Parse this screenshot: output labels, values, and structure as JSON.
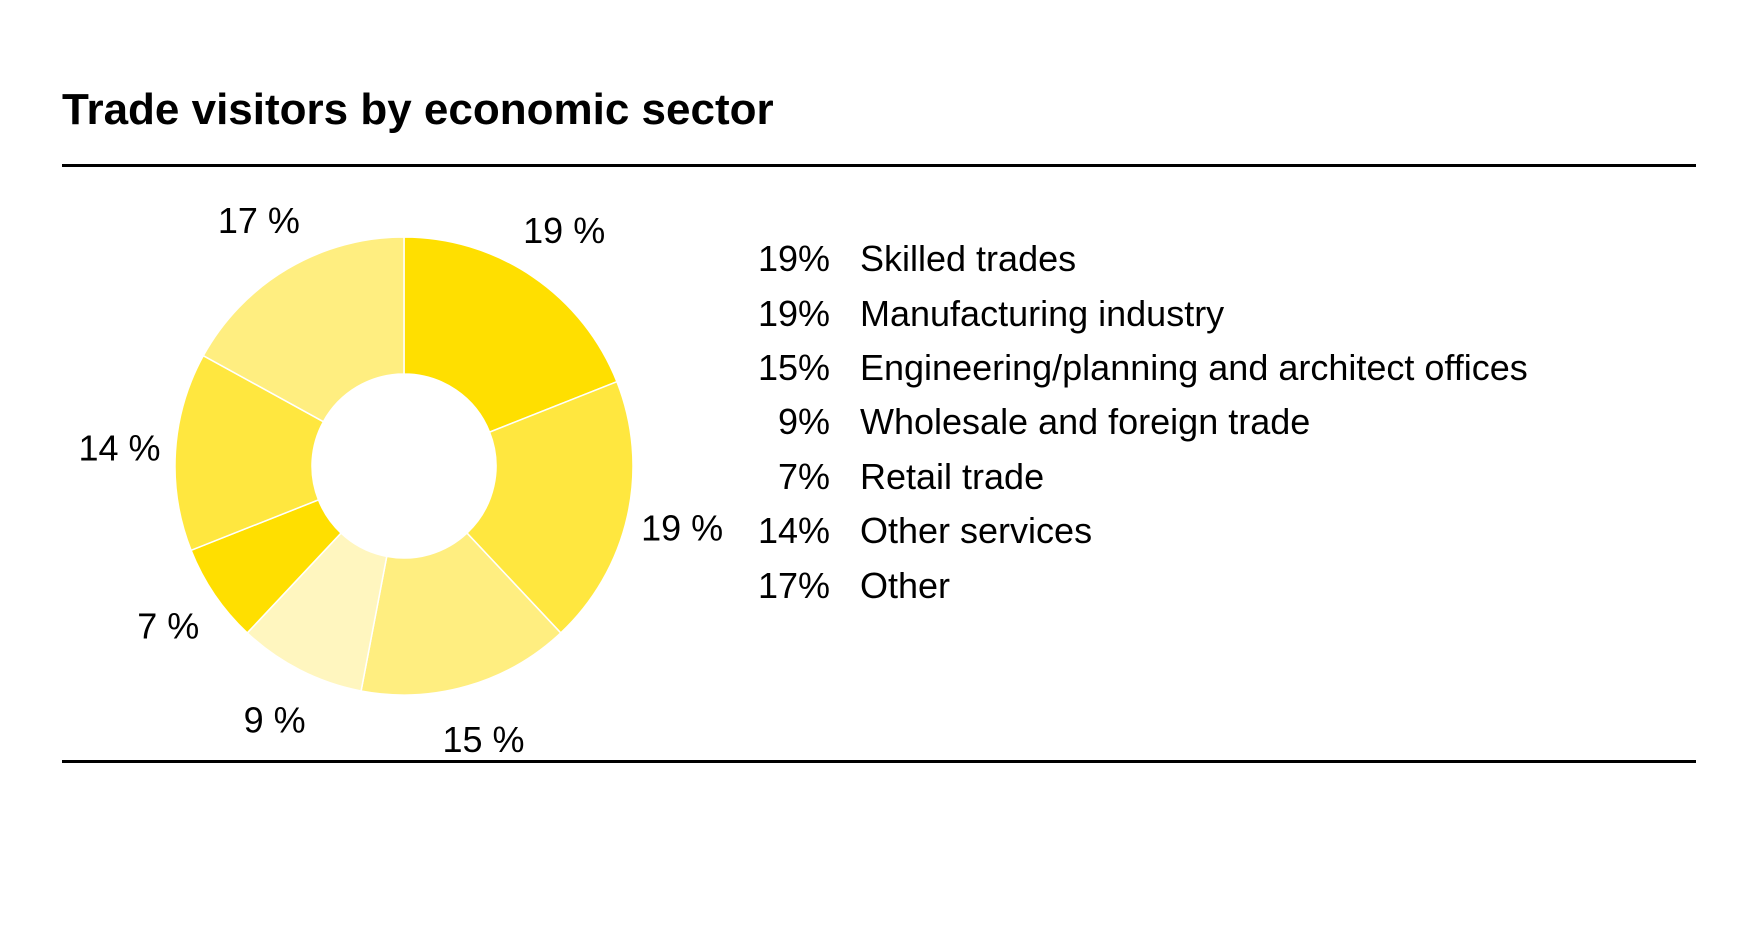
{
  "title": "Trade visitors by economic sector",
  "chart_data": {
    "type": "pie",
    "donut": true,
    "start_angle_deg": 0,
    "direction": "clockwise",
    "grid": false,
    "legend_position": "right",
    "slices": [
      {
        "label": "Skilled trades",
        "value": 19,
        "slice_label": "19 %",
        "legend_value": "19%",
        "color": "#FFDF00"
      },
      {
        "label": "Manufacturing industry",
        "value": 19,
        "slice_label": "19 %",
        "legend_value": "19%",
        "color": "#FFE73F"
      },
      {
        "label": "Engineering/planning and architect offices",
        "value": 15,
        "slice_label": "15 %",
        "legend_value": "15%",
        "color": "#FFEE80"
      },
      {
        "label": "Wholesale and foreign trade",
        "value": 9,
        "slice_label": "9 %",
        "legend_value": "9%",
        "color": "#FFF6BF"
      },
      {
        "label": "Retail trade",
        "value": 7,
        "slice_label": "7 %",
        "legend_value": "7%",
        "color": "#FFDF00"
      },
      {
        "label": "Other services",
        "value": 14,
        "slice_label": "14 %",
        "legend_value": "14%",
        "color": "#FFE73F"
      },
      {
        "label": "Other",
        "value": 17,
        "slice_label": "17 %",
        "legend_value": "17%",
        "color": "#FFEE80"
      }
    ]
  }
}
